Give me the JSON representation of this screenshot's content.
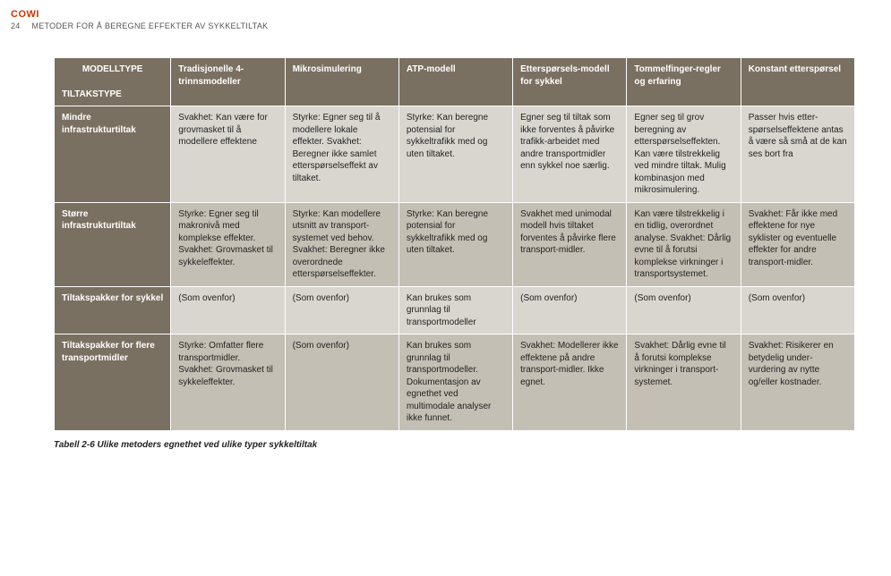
{
  "header": {
    "logo": "COWI",
    "page_number": "24",
    "doc_title": "METODER FOR Å BEREGNE EFFEKTER AV SYKKELTILTAK"
  },
  "table": {
    "corner_top": "MODELLTYPE",
    "corner_bottom": "TILTAKSTYPE",
    "columns": [
      "Tradisjonelle 4-trinnsmodeller",
      "Mikrosimulering",
      "ATP-modell",
      "Etterspørsels-modell for sykkel",
      "Tommelfinger-regler og erfaring",
      "Konstant etterspørsel"
    ],
    "rows": [
      {
        "head": "Mindre infrastrukturtiltak",
        "cells": [
          "Svakhet: Kan være for grovmasket til å modellere effektene",
          "Styrke: Egner seg til å modellere lokale effekter. Svakhet: Beregner ikke samlet etterspørselseffekt av tiltaket.",
          "Styrke: Kan beregne potensial for sykkeltrafikk med og uten tiltaket.",
          "Egner seg til tiltak som ikke forventes å påvirke trafikk-arbeidet med andre transportmidler enn sykkel noe særlig.",
          "Egner seg til grov beregning av etterspørselseffekten. Kan være tilstrekkelig ved mindre tiltak. Mulig kombinasjon med mikrosimulering.",
          "Passer hvis etter-spørselseffektene antas å være så små at de kan ses bort fra"
        ]
      },
      {
        "head": "Større infrastrukturtiltak",
        "cells": [
          "Styrke: Egner seg til makronivå med komplekse effekter. Svakhet: Grovmasket til sykkeleffekter.",
          "Styrke: Kan modellere utsnitt av transport-systemet ved behov. Svakhet: Beregner ikke overordnede etterspørselseffekter.",
          "Styrke: Kan beregne potensial for sykkeltrafikk med og uten tiltaket.",
          "Svakhet med unimodal modell hvis tiltaket forventes å påvirke flere transport-midler.",
          "Kan være tilstrekkelig i en tidlig, overordnet analyse. Svakhet: Dårlig evne til å forutsi komplekse virkninger i transportsystemet.",
          "Svakhet: Får ikke med effektene for nye syklister og eventuelle effekter for andre transport-midler."
        ]
      },
      {
        "head": "Tiltakspakker for sykkel",
        "cells": [
          "(Som ovenfor)",
          "(Som ovenfor)",
          "Kan brukes som grunnlag til transportmodeller",
          "(Som ovenfor)",
          "(Som ovenfor)",
          "(Som ovenfor)"
        ]
      },
      {
        "head": "Tiltakspakker for flere transportmidler",
        "cells": [
          "Styrke: Omfatter flere transportmidler. Svakhet: Grovmasket til sykkeleffekter.",
          "(Som ovenfor)",
          "Kan brukes som grunnlag til transportmodeller. Dokumentasjon av egnethet ved multimodale analyser ikke funnet.",
          "Svakhet: Modellerer ikke effektene på andre transport-midler. Ikke egnet.",
          "Svakhet: Dårlig evne til å forutsi komplekse virkninger i transport-systemet.",
          "Svakhet: Risikerer en betydelig under-vurdering av nytte og/eller kostnader."
        ]
      }
    ]
  },
  "caption": "Tabell 2-6  Ulike metoders egnethet ved ulike typer sykkeltiltak",
  "colors": {
    "logo": "#cc3300",
    "header_bg": "#7a7061",
    "row_even_bg": "#d9d6cf",
    "row_odd_bg": "#c4bfb4"
  }
}
